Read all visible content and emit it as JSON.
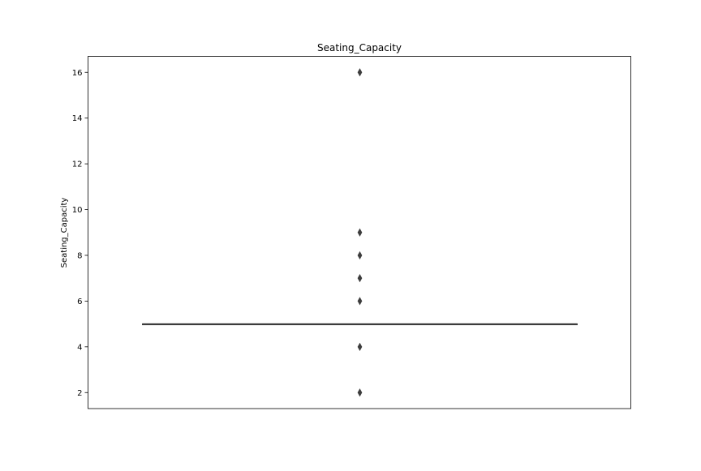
{
  "chart_data": {
    "type": "box",
    "title": "Seating_Capacity",
    "xlabel": "",
    "ylabel": "Seating_Capacity",
    "ylim": [
      1.3,
      16.7
    ],
    "yticks": [
      2,
      4,
      6,
      8,
      10,
      12,
      14,
      16
    ],
    "grid": false,
    "series": [
      {
        "min": 5,
        "q1": 5,
        "median": 5,
        "q3": 5,
        "max": 5,
        "outliers": [
          2,
          4,
          6,
          7,
          8,
          9,
          16
        ]
      }
    ],
    "colors": {
      "box": "#3d3d3d",
      "outlier": "#3d3d3d",
      "axes": "#000000"
    }
  }
}
